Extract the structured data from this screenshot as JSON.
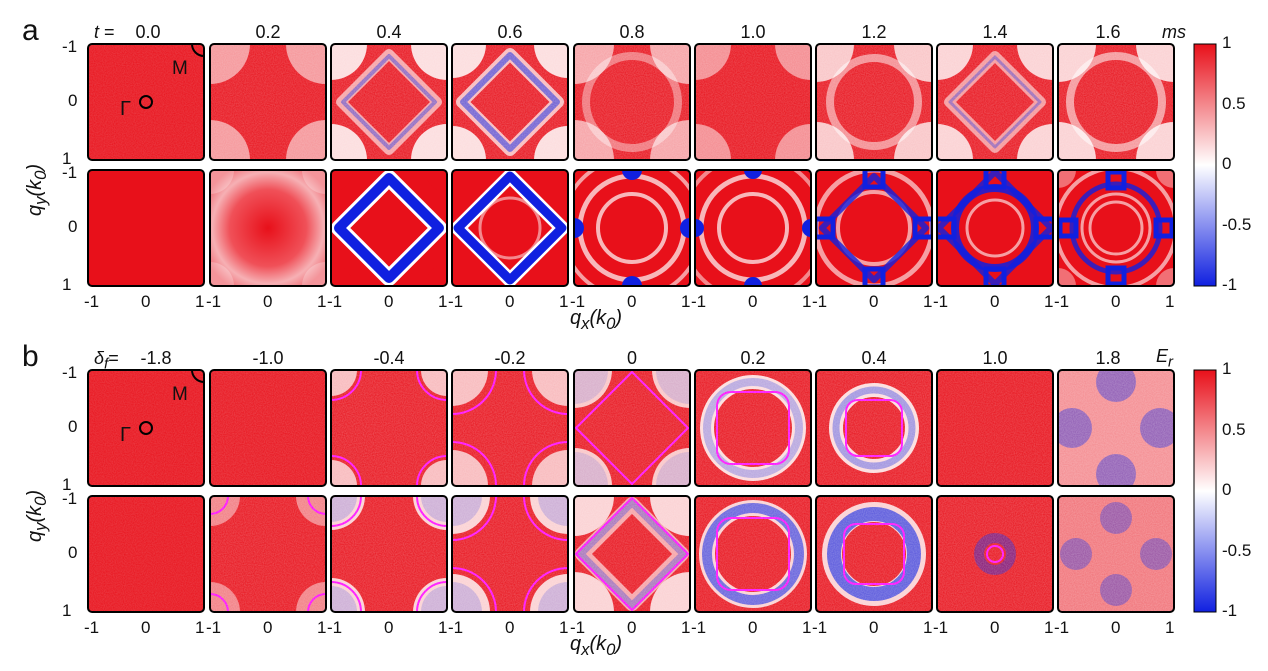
{
  "figure": {
    "panel_a": {
      "letter": "a",
      "param_symbol": "t",
      "param_eq": " = ",
      "values": [
        "0.0",
        "0.2",
        "0.4",
        "0.6",
        "0.8",
        "1.0",
        "1.2",
        "1.4",
        "1.6"
      ],
      "unit": "ms",
      "markers": {
        "M": "M",
        "Gamma": "Γ"
      }
    },
    "panel_b": {
      "letter": "b",
      "param_symbol": "δ",
      "param_sub": "f",
      "param_eq": "=",
      "values": [
        "-1.8",
        "-1.0",
        "-0.4",
        "-0.2",
        "0",
        "0.2",
        "0.4",
        "1.0",
        "1.8"
      ],
      "unit": "E",
      "unit_sub": "r",
      "markers": {
        "M": "M",
        "Gamma": "Γ"
      }
    },
    "axes": {
      "x_title_main": "q",
      "x_title_sub": "x",
      "y_title_main": "q",
      "y_title_sub": "y",
      "title_arg_open": "(k",
      "title_arg_sub": "0",
      "title_arg_close": ")",
      "y_ticks": [
        "-1",
        "0",
        "1"
      ],
      "x_ticks": [
        "-1",
        "0",
        "1"
      ]
    },
    "colorbar": {
      "ticks": [
        "1",
        "0.5",
        "0",
        "-0.5",
        "-1"
      ]
    },
    "colors": {
      "red": "#e8101a",
      "blue": "#1020e0",
      "white": "#ffffff",
      "magenta": "#ff00ff"
    }
  }
}
